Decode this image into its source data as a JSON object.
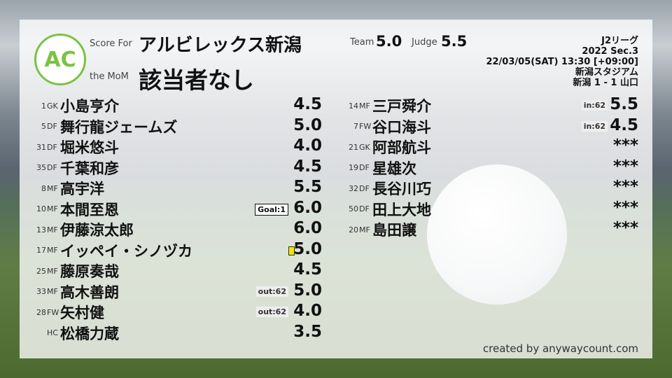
{
  "header": {
    "score_for": "Score For",
    "the_mom": "the MoM",
    "team": "アルビレックス新潟",
    "mom": "該当者なし",
    "team_label": "Team",
    "team_score": "5.0",
    "judge_label": "Judge",
    "judge_score": "5.5",
    "logo_text": "ANYWAY AC COUNT"
  },
  "match": {
    "league": "J2リーグ",
    "section": "2022 Sec.3",
    "datetime": "22/03/05(SAT) 13:30 [+09:00]",
    "stadium": "新潟スタジアム",
    "result": "新潟 1 - 1 山口"
  },
  "starters": [
    {
      "num": "1",
      "pos": "GK",
      "name": "小島亨介",
      "score": "4.5"
    },
    {
      "num": "5",
      "pos": "DF",
      "name": "舞行龍ジェームズ",
      "score": "5.0"
    },
    {
      "num": "31",
      "pos": "DF",
      "name": "堀米悠斗",
      "score": "4.0"
    },
    {
      "num": "35",
      "pos": "DF",
      "name": "千葉和彦",
      "score": "4.5"
    },
    {
      "num": "8",
      "pos": "MF",
      "name": "高宇洋",
      "score": "5.5"
    },
    {
      "num": "10",
      "pos": "MF",
      "name": "本間至恩",
      "score": "6.0",
      "badge": "Goal:1",
      "badge_type": "goal"
    },
    {
      "num": "13",
      "pos": "MF",
      "name": "伊藤涼太郎",
      "score": "6.0"
    },
    {
      "num": "17",
      "pos": "MF",
      "name": "イッペイ・シノヅカ",
      "score": "5.0",
      "card": "yellow"
    },
    {
      "num": "25",
      "pos": "MF",
      "name": "藤原奏哉",
      "score": "4.5"
    },
    {
      "num": "33",
      "pos": "MF",
      "name": "高木善朗",
      "score": "5.0",
      "badge": "out:62"
    },
    {
      "num": "28",
      "pos": "FW",
      "name": "矢村健",
      "score": "4.0",
      "badge": "out:62"
    },
    {
      "num": "",
      "pos": "HC",
      "name": "松橋力蔵",
      "score": "3.5"
    }
  ],
  "subs": [
    {
      "num": "14",
      "pos": "MF",
      "name": "三戸舜介",
      "score": "5.5",
      "badge": "in:62"
    },
    {
      "num": "7",
      "pos": "FW",
      "name": "谷口海斗",
      "score": "4.5",
      "badge": "in:62"
    },
    {
      "num": "21",
      "pos": "GK",
      "name": "阿部航斗",
      "score": "***"
    },
    {
      "num": "19",
      "pos": "DF",
      "name": "星雄次",
      "score": "***"
    },
    {
      "num": "32",
      "pos": "DF",
      "name": "長谷川巧",
      "score": "***"
    },
    {
      "num": "50",
      "pos": "DF",
      "name": "田上大地",
      "score": "***"
    },
    {
      "num": "20",
      "pos": "MF",
      "name": "島田譲",
      "score": "***"
    }
  ],
  "footer": "created by anywaycount.com"
}
